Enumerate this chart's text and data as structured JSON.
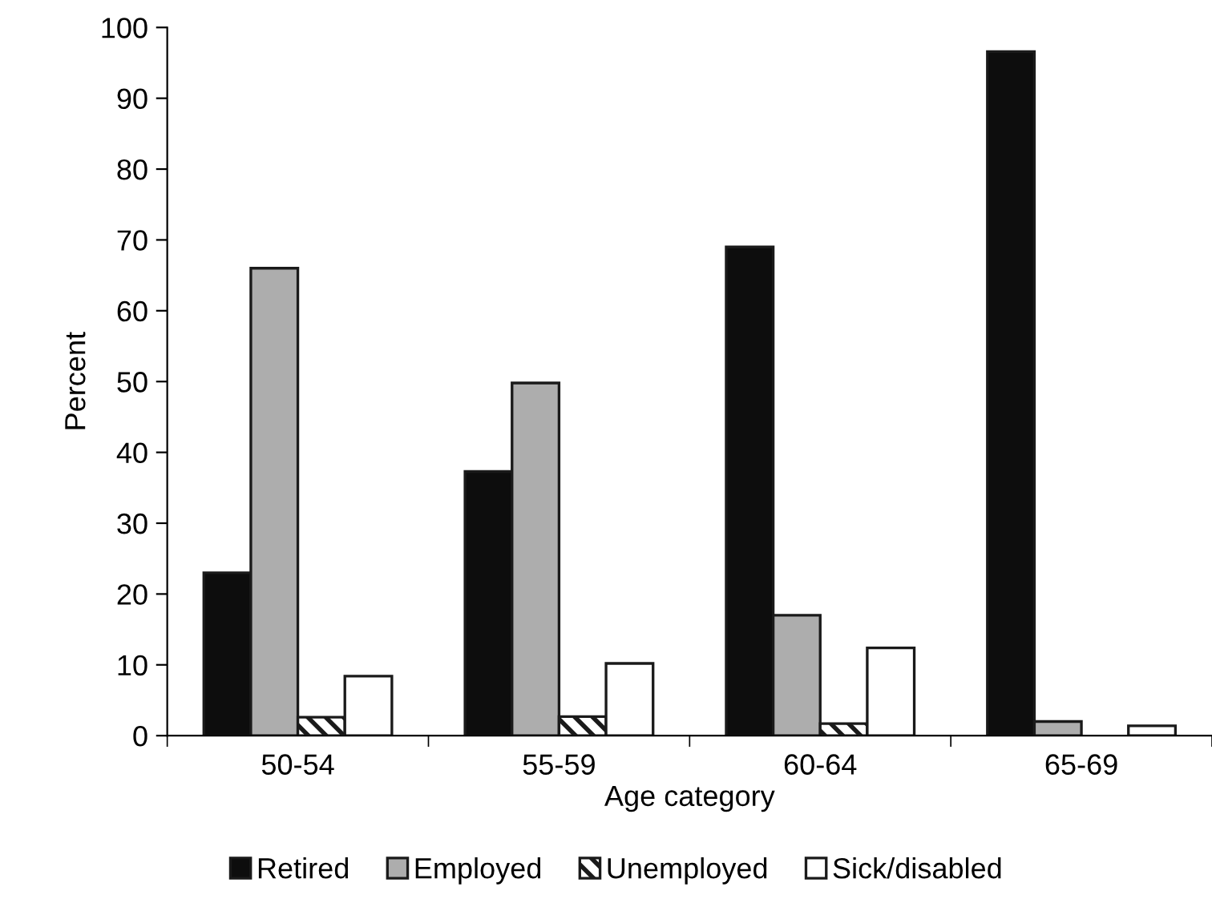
{
  "chart_data": {
    "type": "bar",
    "xlabel": "Age category",
    "ylabel": "Percent",
    "categories": [
      "50-54",
      "55-59",
      "60-64",
      "65-69"
    ],
    "series": [
      {
        "name": "Retired",
        "color": "#0d0d0d",
        "values": [
          23,
          37.3,
          69,
          96.6
        ]
      },
      {
        "name": "Employed",
        "color": "#adadad",
        "values": [
          66,
          49.8,
          17,
          2.0
        ]
      },
      {
        "name": "Unemployed",
        "color": "#ffffff",
        "values": [
          2.6,
          2.7,
          1.7,
          null
        ]
      },
      {
        "name": "Sick/disabled",
        "color": "#ffffff",
        "values": [
          8.4,
          10.2,
          12.4,
          1.4
        ]
      }
    ],
    "ylim": [
      0,
      100
    ],
    "yticks": [
      0,
      10,
      20,
      30,
      40,
      50,
      60,
      70,
      80,
      90,
      100
    ],
    "grid": false,
    "legend": "bottom"
  }
}
